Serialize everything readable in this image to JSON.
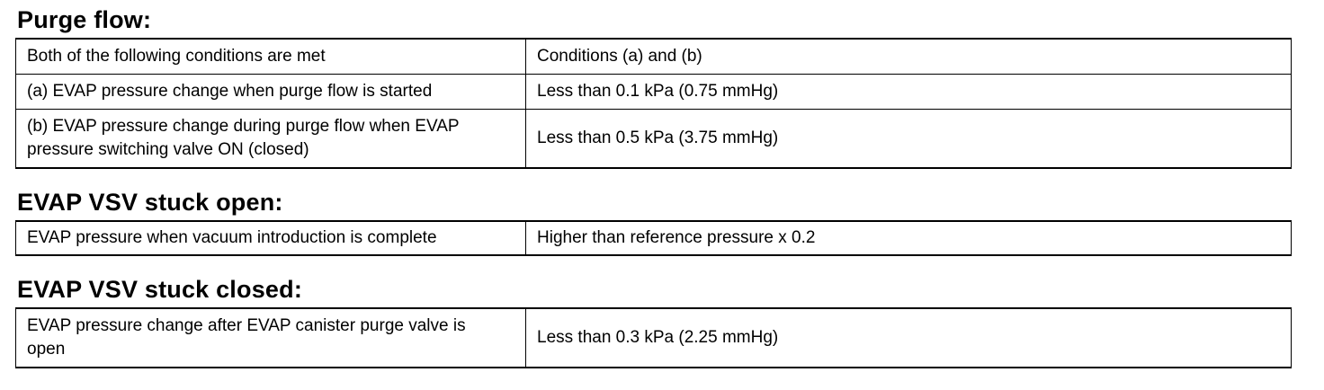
{
  "sections": [
    {
      "title": "Purge flow:",
      "rows": [
        {
          "condition": "Both of the following conditions are met",
          "value": "Conditions (a) and (b)"
        },
        {
          "condition": "(a) EVAP pressure change when purge flow is started",
          "value": "Less than 0.1 kPa (0.75 mmHg)"
        },
        {
          "condition": "(b) EVAP pressure change during purge flow when EVAP pressure switching valve ON (closed)",
          "value": "Less than 0.5 kPa (3.75 mmHg)"
        }
      ]
    },
    {
      "title": "EVAP VSV stuck open:",
      "rows": [
        {
          "condition": "EVAP pressure when vacuum introduction is complete",
          "value": "Higher than reference pressure x 0.2"
        }
      ]
    },
    {
      "title": "EVAP VSV stuck closed:",
      "rows": [
        {
          "condition": "EVAP pressure change after EVAP canister purge valve is open",
          "value": "Less than 0.3 kPa (2.25 mmHg)"
        }
      ]
    }
  ]
}
